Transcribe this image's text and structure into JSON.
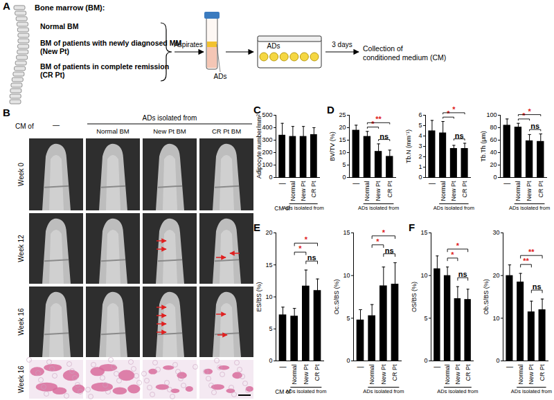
{
  "panel_A": {
    "label": "A",
    "heading": "Bone marrow (BM):",
    "sources": [
      [
        "Normal BM"
      ],
      [
        "BM of patients with  newly diagnosed MM",
        "(New Pt)"
      ],
      [
        "BM of patients in complete remission",
        "(CR Pt)"
      ]
    ],
    "aspirate_step": "Aspirates",
    "tube_label": "ADs",
    "plate_label": "ADs",
    "culture_step": "3 days",
    "result": [
      "Collection of",
      "conditioned medium (CM)"
    ]
  },
  "panel_B": {
    "label": "B",
    "row_header": "CM of",
    "column_group": "ADs isolated from",
    "columns": [
      "—",
      "Normal BM",
      "New Pt BM",
      "CR Pt BM"
    ],
    "rows": [
      "Week 0",
      "Week 12",
      "Week 16",
      "Week 16"
    ]
  },
  "chart_data": [
    {
      "panel": "C",
      "type": "bar",
      "y_label": "Adipocyte number/mm²",
      "categories": [
        "—",
        "Normal",
        "New Pt",
        "CR Pt"
      ],
      "values": [
        340,
        330,
        330,
        345
      ],
      "errors": [
        95,
        80,
        80,
        55
      ],
      "color": "#000000",
      "ylim": [
        0,
        500
      ],
      "yticks": [
        0,
        100,
        200,
        300,
        400,
        500
      ],
      "group": {
        "label": "ADs isolated from",
        "from": "Normal",
        "to": "CR Pt"
      },
      "row_label": "CM of",
      "significance": []
    },
    {
      "panel": "D",
      "type": "bar",
      "y_label": "BV/TV (%)",
      "categories": [
        "—",
        "Normal",
        "New Pt",
        "CR Pt"
      ],
      "values": [
        19,
        16.5,
        10.5,
        8.5
      ],
      "errors": [
        2,
        2,
        3,
        2.5
      ],
      "color": "#000000",
      "ylim": [
        0,
        25
      ],
      "yticks": [
        0,
        5,
        10,
        15,
        20,
        25
      ],
      "group": {
        "label": "ADs isolated from",
        "from": "Normal",
        "to": "CR Pt"
      },
      "significance": [
        {
          "from": "New Pt",
          "to": "CR Pt",
          "label": "ns",
          "color": "#000000"
        },
        {
          "from": "Normal",
          "to": "New Pt",
          "label": "*",
          "color": "#e02020"
        },
        {
          "from": "Normal",
          "to": "CR Pt",
          "label": "**",
          "color": "#e02020"
        }
      ]
    },
    {
      "panel": "D",
      "type": "bar",
      "y_label": "Tb.N (mm⁻¹)",
      "categories": [
        "—",
        "Normal",
        "New Pt",
        "CR Pt"
      ],
      "values": [
        4.5,
        4.3,
        2.8,
        2.8
      ],
      "errors": [
        1,
        1.1,
        0.3,
        0.5
      ],
      "color": "#000000",
      "ylim": [
        0,
        6
      ],
      "yticks": [
        0,
        1,
        2,
        3,
        4,
        5,
        6
      ],
      "group": {
        "label": "ADs isolated from",
        "from": "Normal",
        "to": "CR Pt"
      },
      "significance": [
        {
          "from": "New Pt",
          "to": "CR Pt",
          "label": "ns",
          "color": "#000000"
        },
        {
          "from": "Normal",
          "to": "New Pt",
          "label": "*",
          "color": "#e02020"
        },
        {
          "from": "Normal",
          "to": "CR Pt",
          "label": "*",
          "color": "#e02020"
        }
      ]
    },
    {
      "panel": "D",
      "type": "bar",
      "y_label": "Tb.Th (μm)",
      "categories": [
        "—",
        "Normal",
        "New Pt",
        "CR Pt"
      ],
      "values": [
        84,
        81,
        59,
        58
      ],
      "errors": [
        10,
        6,
        10,
        12
      ],
      "color": "#000000",
      "ylim": [
        0,
        100
      ],
      "yticks": [
        0,
        20,
        40,
        60,
        80,
        100
      ],
      "group": {
        "label": "ADs isolated from",
        "from": "Normal",
        "to": "CR Pt"
      },
      "significance": [
        {
          "from": "New Pt",
          "to": "CR Pt",
          "label": "ns",
          "color": "#000000"
        },
        {
          "from": "Normal",
          "to": "New Pt",
          "label": "*",
          "color": "#e02020"
        },
        {
          "from": "Normal",
          "to": "CR Pt",
          "label": "*",
          "color": "#e02020"
        }
      ]
    },
    {
      "panel": "E",
      "type": "bar",
      "y_label": "ES/BS (%)",
      "categories": [
        "—",
        "Normal",
        "New Pt",
        "CR Pt"
      ],
      "values": [
        7.2,
        7,
        11.7,
        11
      ],
      "errors": [
        1.2,
        1.2,
        2.5,
        1.8
      ],
      "color": "#000000",
      "ylim": [
        0,
        20
      ],
      "yticks": [
        0,
        5,
        10,
        15,
        20
      ],
      "group": {
        "label": "ADs isolated from",
        "from": "Normal",
        "to": "CR Pt"
      },
      "row_label": "CM of",
      "significance": [
        {
          "from": "New Pt",
          "to": "CR Pt",
          "label": "ns",
          "color": "#000000"
        },
        {
          "from": "Normal",
          "to": "New Pt",
          "label": "*",
          "color": "#e02020"
        },
        {
          "from": "Normal",
          "to": "CR Pt",
          "label": "*",
          "color": "#e02020"
        }
      ]
    },
    {
      "panel": "E",
      "type": "bar",
      "y_label": "Oc.S/BS (%)",
      "categories": [
        "—",
        "Normal",
        "New Pt",
        "CR Pt"
      ],
      "values": [
        4.8,
        5.3,
        8.8,
        9
      ],
      "errors": [
        1.2,
        1.3,
        2.2,
        2.5
      ],
      "color": "#000000",
      "ylim": [
        0,
        15
      ],
      "yticks": [
        0,
        5,
        10,
        15
      ],
      "group": {
        "label": "ADs isolated from",
        "from": "Normal",
        "to": "CR Pt"
      },
      "significance": [
        {
          "from": "New Pt",
          "to": "CR Pt",
          "label": "ns",
          "color": "#000000"
        },
        {
          "from": "Normal",
          "to": "New Pt",
          "label": "*",
          "color": "#e02020"
        },
        {
          "from": "Normal",
          "to": "CR Pt",
          "label": "*",
          "color": "#e02020"
        }
      ]
    },
    {
      "panel": "F",
      "type": "bar",
      "y_label": "OS/BS (%)",
      "categories": [
        "—",
        "Normal",
        "New Pt",
        "CR Pt"
      ],
      "values": [
        10.8,
        10,
        7.3,
        7.2
      ],
      "errors": [
        1.5,
        1,
        1.4,
        1.2
      ],
      "color": "#000000",
      "ylim": [
        0,
        15
      ],
      "yticks": [
        0,
        5,
        10,
        15
      ],
      "group": {
        "label": "ADs isolated from",
        "from": "Normal",
        "to": "CR Pt"
      },
      "significance": [
        {
          "from": "New Pt",
          "to": "CR Pt",
          "label": "ns",
          "color": "#000000"
        },
        {
          "from": "Normal",
          "to": "New Pt",
          "label": "*",
          "color": "#e02020"
        },
        {
          "from": "Normal",
          "to": "CR Pt",
          "label": "*",
          "color": "#e02020"
        }
      ]
    },
    {
      "panel": "F",
      "type": "bar",
      "y_label": "Ob.S/BS (%)",
      "categories": [
        "—",
        "Normal",
        "New Pt",
        "CR Pt"
      ],
      "values": [
        20,
        18.5,
        11.5,
        12
      ],
      "errors": [
        2.5,
        2,
        2.5,
        2.5
      ],
      "color": "#000000",
      "ylim": [
        0,
        30
      ],
      "yticks": [
        0,
        10,
        20,
        30
      ],
      "group": {
        "label": "ADs isolated from",
        "from": "Normal",
        "to": "CR Pt"
      },
      "significance": [
        {
          "from": "New Pt",
          "to": "CR Pt",
          "label": "ns",
          "color": "#000000"
        },
        {
          "from": "Normal",
          "to": "New Pt",
          "label": "**",
          "color": "#e02020"
        },
        {
          "from": "Normal",
          "to": "CR Pt",
          "label": "**",
          "color": "#e02020"
        }
      ]
    }
  ]
}
